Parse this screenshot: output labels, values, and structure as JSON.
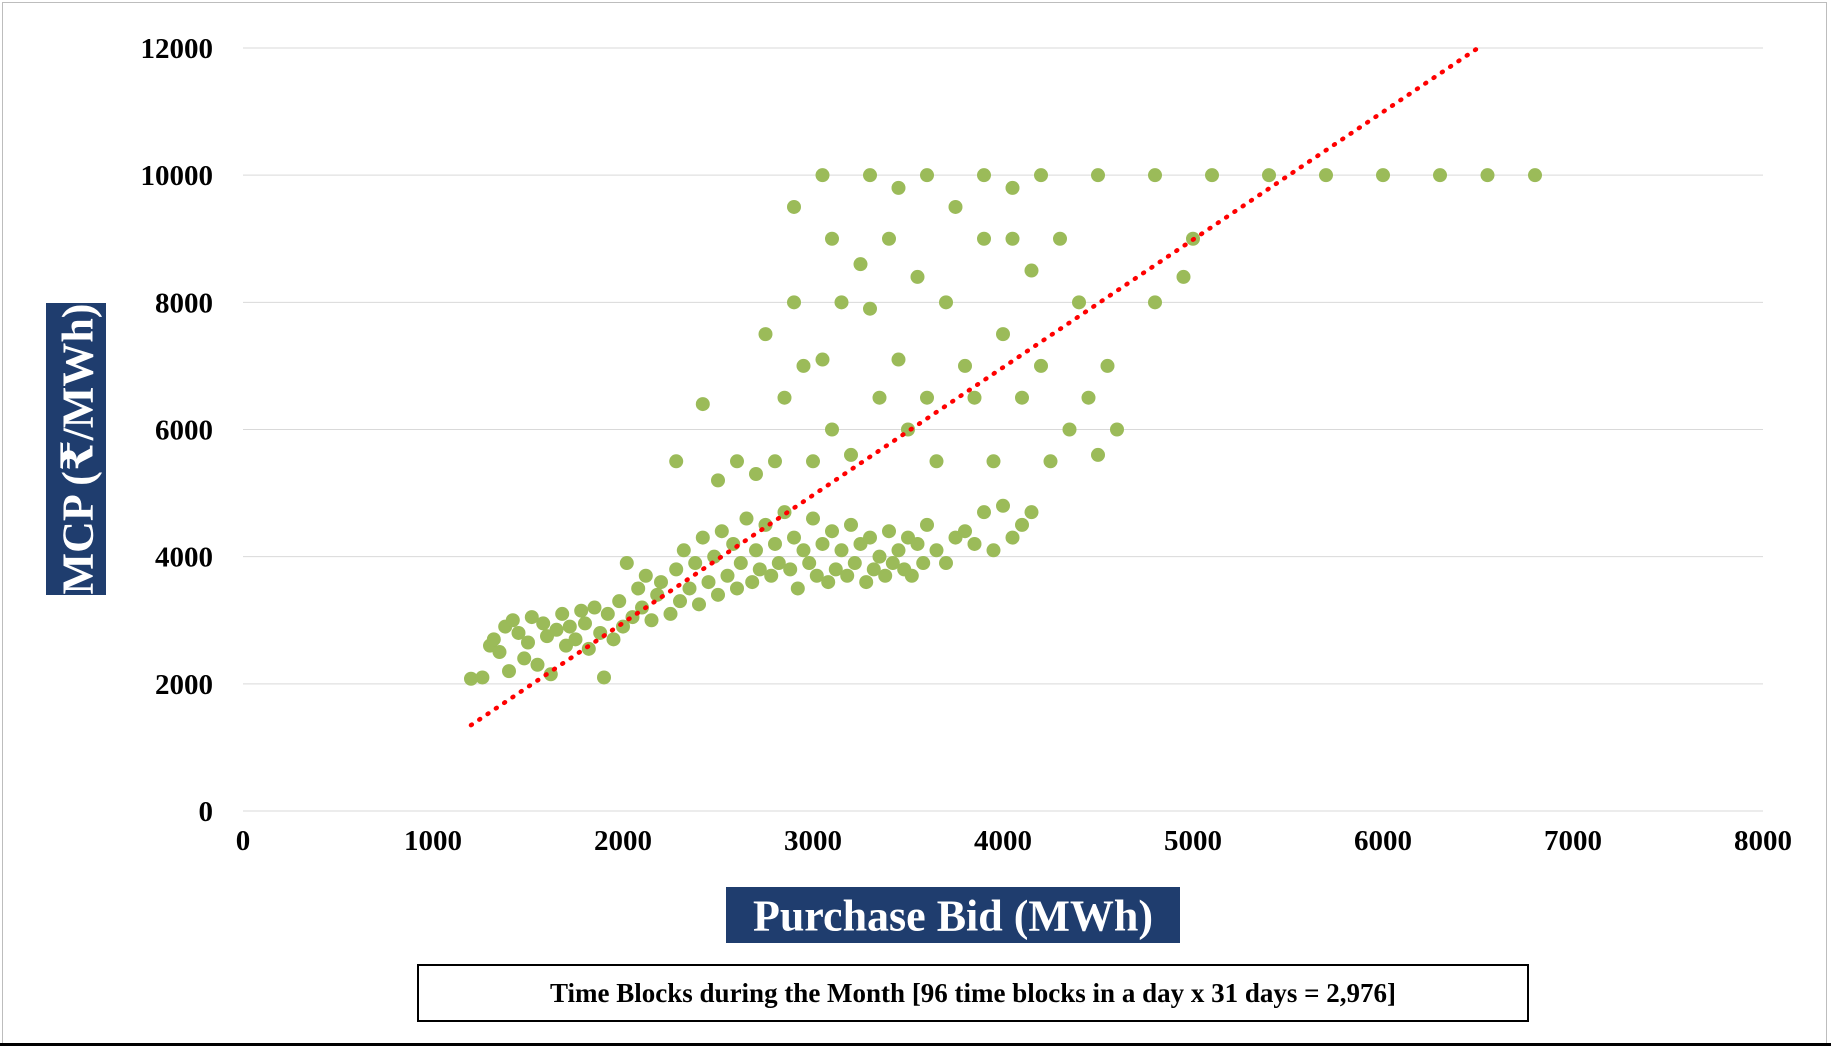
{
  "chart_data": {
    "type": "scatter",
    "title": "",
    "xlabel": "Purchase Bid (MWh)",
    "ylabel": "MCP (₹/MWh)",
    "xlim": [
      0,
      8000
    ],
    "ylim": [
      0,
      12000
    ],
    "x_ticks": [
      "0",
      "1000",
      "2000",
      "3000",
      "4000",
      "5000",
      "6000",
      "7000",
      "8000"
    ],
    "y_ticks": [
      "0",
      "2000",
      "4000",
      "6000",
      "8000",
      "10000",
      "12000"
    ],
    "grid": "horizontal",
    "legend": "none",
    "note": "Time Blocks during the Month [96 time blocks in a day x 31 days = 2,976]",
    "marker_color": "#9bbb59",
    "axis_title_bg": "#1f3d6e",
    "trendline": {
      "type": "linear",
      "style": "dotted",
      "color": "#ff0000",
      "x": [
        1200,
        6500
      ],
      "y": [
        1350,
        12000
      ]
    },
    "point_count": 2976,
    "series": [
      {
        "points": [
          [
            1200,
            2080
          ],
          [
            1260,
            2100
          ],
          [
            1300,
            2600
          ],
          [
            1320,
            2700
          ],
          [
            1350,
            2500
          ],
          [
            1380,
            2900
          ],
          [
            1400,
            2200
          ],
          [
            1420,
            3000
          ],
          [
            1450,
            2800
          ],
          [
            1480,
            2400
          ],
          [
            1500,
            2650
          ],
          [
            1520,
            3050
          ],
          [
            1550,
            2300
          ],
          [
            1580,
            2950
          ],
          [
            1600,
            2750
          ],
          [
            1620,
            2150
          ],
          [
            1650,
            2850
          ],
          [
            1680,
            3100
          ],
          [
            1700,
            2600
          ],
          [
            1720,
            2900
          ],
          [
            1750,
            2700
          ],
          [
            1780,
            3150
          ],
          [
            1800,
            2950
          ],
          [
            1820,
            2550
          ],
          [
            1850,
            3200
          ],
          [
            1880,
            2800
          ],
          [
            1900,
            2100
          ],
          [
            1920,
            3100
          ],
          [
            1950,
            2700
          ],
          [
            1980,
            3300
          ],
          [
            2000,
            2900
          ],
          [
            2020,
            3900
          ],
          [
            2050,
            3050
          ],
          [
            2080,
            3500
          ],
          [
            2100,
            3200
          ],
          [
            2120,
            3700
          ],
          [
            2150,
            3000
          ],
          [
            2180,
            3400
          ],
          [
            2200,
            3600
          ],
          [
            2250,
            3100
          ],
          [
            2280,
            3800
          ],
          [
            2300,
            3300
          ],
          [
            2320,
            4100
          ],
          [
            2350,
            3500
          ],
          [
            2380,
            3900
          ],
          [
            2400,
            3250
          ],
          [
            2420,
            4300
          ],
          [
            2450,
            3600
          ],
          [
            2480,
            4000
          ],
          [
            2500,
            3400
          ],
          [
            2520,
            4400
          ],
          [
            2550,
            3700
          ],
          [
            2580,
            4200
          ],
          [
            2600,
            3500
          ],
          [
            2620,
            3900
          ],
          [
            2650,
            4600
          ],
          [
            2680,
            3600
          ],
          [
            2700,
            4100
          ],
          [
            2720,
            3800
          ],
          [
            2750,
            4500
          ],
          [
            2780,
            3700
          ],
          [
            2800,
            4200
          ],
          [
            2820,
            3900
          ],
          [
            2850,
            4700
          ],
          [
            2880,
            3800
          ],
          [
            2900,
            4300
          ],
          [
            2920,
            3500
          ],
          [
            2950,
            4100
          ],
          [
            2980,
            3900
          ],
          [
            3000,
            4600
          ],
          [
            3020,
            3700
          ],
          [
            3050,
            4200
          ],
          [
            3080,
            3600
          ],
          [
            3100,
            4400
          ],
          [
            3120,
            3800
          ],
          [
            3150,
            4100
          ],
          [
            3180,
            3700
          ],
          [
            3200,
            4500
          ],
          [
            3220,
            3900
          ],
          [
            3250,
            4200
          ],
          [
            3280,
            3600
          ],
          [
            3300,
            4300
          ],
          [
            3320,
            3800
          ],
          [
            3350,
            4000
          ],
          [
            3380,
            3700
          ],
          [
            3400,
            4400
          ],
          [
            3420,
            3900
          ],
          [
            3450,
            4100
          ],
          [
            3480,
            3800
          ],
          [
            3500,
            4300
          ],
          [
            3520,
            3700
          ],
          [
            3550,
            4200
          ],
          [
            3580,
            3900
          ],
          [
            3600,
            4500
          ],
          [
            3650,
            4100
          ],
          [
            3700,
            3900
          ],
          [
            3750,
            4300
          ],
          [
            3800,
            4400
          ],
          [
            3850,
            4200
          ],
          [
            3900,
            4700
          ],
          [
            3950,
            4100
          ],
          [
            4000,
            4800
          ],
          [
            4050,
            4300
          ],
          [
            4100,
            4500
          ],
          [
            4150,
            4700
          ],
          [
            2280,
            5500
          ],
          [
            2420,
            6400
          ],
          [
            2500,
            5200
          ],
          [
            2600,
            5500
          ],
          [
            2700,
            5300
          ],
          [
            2750,
            7500
          ],
          [
            2800,
            5500
          ],
          [
            2850,
            6500
          ],
          [
            2900,
            8000
          ],
          [
            2950,
            7000
          ],
          [
            3000,
            5500
          ],
          [
            3050,
            7100
          ],
          [
            3100,
            6000
          ],
          [
            3150,
            8000
          ],
          [
            3200,
            5600
          ],
          [
            3250,
            8600
          ],
          [
            3300,
            7900
          ],
          [
            3350,
            6500
          ],
          [
            3400,
            9000
          ],
          [
            3450,
            7100
          ],
          [
            3500,
            6000
          ],
          [
            3550,
            8400
          ],
          [
            3600,
            6500
          ],
          [
            3650,
            5500
          ],
          [
            3700,
            8000
          ],
          [
            3750,
            9500
          ],
          [
            3800,
            7000
          ],
          [
            3850,
            6500
          ],
          [
            3900,
            9000
          ],
          [
            3950,
            5500
          ],
          [
            4000,
            7500
          ],
          [
            4050,
            9000
          ],
          [
            4100,
            6500
          ],
          [
            4150,
            8500
          ],
          [
            4200,
            7000
          ],
          [
            4250,
            5500
          ],
          [
            4300,
            9000
          ],
          [
            4350,
            6000
          ],
          [
            4400,
            8000
          ],
          [
            4450,
            6500
          ],
          [
            4500,
            5600
          ],
          [
            4550,
            7000
          ],
          [
            4600,
            6000
          ],
          [
            4800,
            8000
          ],
          [
            4950,
            8400
          ],
          [
            5000,
            9000
          ],
          [
            2900,
            9500
          ],
          [
            3100,
            9000
          ],
          [
            3450,
            9800
          ],
          [
            4050,
            9800
          ],
          [
            3050,
            10000
          ],
          [
            3300,
            10000
          ],
          [
            3600,
            10000
          ],
          [
            3900,
            10000
          ],
          [
            4200,
            10000
          ],
          [
            4500,
            10000
          ],
          [
            4800,
            10000
          ],
          [
            5100,
            10000
          ],
          [
            5400,
            10000
          ],
          [
            5700,
            10000
          ],
          [
            6000,
            10000
          ],
          [
            6300,
            10000
          ],
          [
            6550,
            10000
          ],
          [
            6800,
            10000
          ]
        ]
      }
    ]
  }
}
